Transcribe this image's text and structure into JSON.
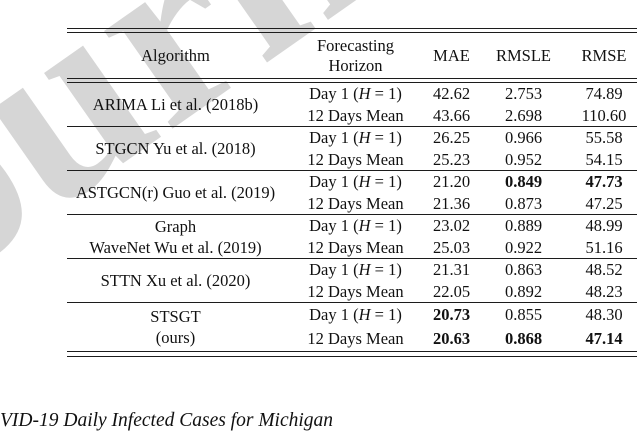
{
  "watermark": {
    "text": "Journal",
    "color": "#d6d6d6"
  },
  "caption": "VID-19 Daily Infected Cases for Michigan",
  "table": {
    "headers": {
      "algorithm": "Algorithm",
      "horizon": "Forecasting Horizon",
      "mae": "MAE",
      "rmsle": "RMSLE",
      "rmse": "RMSE"
    },
    "groups": [
      {
        "algorithm": {
          "line1": "ARIMA Li et al. (2018b)",
          "line2": ""
        },
        "rows": [
          {
            "horizon": {
              "pre": "Day 1 (",
              "var": "H",
              "post": " = 1)"
            },
            "mae": "42.62",
            "rmsle": "2.753",
            "rmse": "74.89"
          },
          {
            "horizon": {
              "pre": "12 Days Mean",
              "var": "",
              "post": ""
            },
            "mae": "43.66",
            "rmsle": "2.698",
            "rmse": "110.60"
          }
        ]
      },
      {
        "algorithm": {
          "line1": "STGCN Yu et al. (2018)",
          "line2": ""
        },
        "rows": [
          {
            "horizon": {
              "pre": "Day 1 (",
              "var": "H",
              "post": " = 1)"
            },
            "mae": "26.25",
            "rmsle": "0.966",
            "rmse": "55.58"
          },
          {
            "horizon": {
              "pre": "12 Days Mean",
              "var": "",
              "post": ""
            },
            "mae": "25.23",
            "rmsle": "0.952",
            "rmse": "54.15"
          }
        ]
      },
      {
        "algorithm": {
          "line1": "ASTGCN(r) Guo et al. (2019)",
          "line2": ""
        },
        "rows": [
          {
            "horizon": {
              "pre": "Day 1 (",
              "var": "H",
              "post": " = 1)"
            },
            "mae": "21.20",
            "rmsle": "0.849",
            "rmse": "47.73"
          },
          {
            "horizon": {
              "pre": "12 Days Mean",
              "var": "",
              "post": ""
            },
            "mae": "21.36",
            "rmsle": "0.873",
            "rmse": "47.25"
          }
        ]
      },
      {
        "algorithm": {
          "line1": "Graph",
          "line2": "WaveNet Wu et al. (2019)"
        },
        "rows": [
          {
            "horizon": {
              "pre": "Day 1 (",
              "var": "H",
              "post": " = 1)"
            },
            "mae": "23.02",
            "rmsle": "0.889",
            "rmse": "48.99"
          },
          {
            "horizon": {
              "pre": "12 Days Mean",
              "var": "",
              "post": ""
            },
            "mae": "25.03",
            "rmsle": "0.922",
            "rmse": "51.16"
          }
        ]
      },
      {
        "algorithm": {
          "line1": "STTN Xu et al. (2020)",
          "line2": ""
        },
        "rows": [
          {
            "horizon": {
              "pre": "Day 1 (",
              "var": "H",
              "post": " = 1)"
            },
            "mae": "21.31",
            "rmsle": "0.863",
            "rmse": "48.52"
          },
          {
            "horizon": {
              "pre": "12 Days Mean",
              "var": "",
              "post": ""
            },
            "mae": "22.05",
            "rmsle": "0.892",
            "rmse": "48.23"
          }
        ]
      },
      {
        "algorithm": {
          "line1": "STSGT",
          "line2": "(ours)"
        },
        "rows": [
          {
            "horizon": {
              "pre": "Day 1 (",
              "var": "H",
              "post": " = 1)"
            },
            "mae": "20.73",
            "rmsle": "0.855",
            "rmse": "48.30"
          },
          {
            "horizon": {
              "pre": "12 Days Mean",
              "var": "",
              "post": ""
            },
            "mae": "20.63",
            "rmsle": "0.868",
            "rmse": "47.14"
          }
        ]
      }
    ]
  }
}
